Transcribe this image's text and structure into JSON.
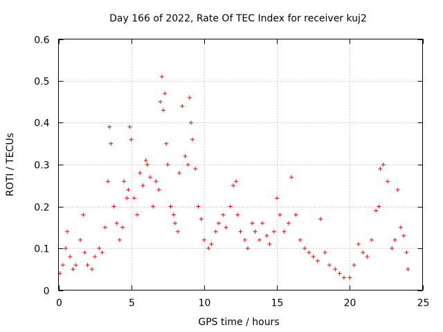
{
  "chart_data": {
    "type": "scatter",
    "title": "Day 166 of 2022, Rate Of TEC Index for receiver kuj2",
    "xlabel": "GPS time / hours",
    "ylabel": "ROTI / TECUs",
    "xlim": [
      0,
      25
    ],
    "ylim": [
      0,
      0.6
    ],
    "x_ticks": [
      0,
      5,
      10,
      15,
      20,
      25
    ],
    "x_tick_labels": [
      "0",
      "5",
      "10",
      "15",
      "20",
      "25"
    ],
    "y_ticks": [
      0,
      0.1,
      0.2,
      0.3,
      0.4,
      0.5,
      0.6
    ],
    "y_tick_labels": [
      "0",
      "0.1",
      "0.2",
      "0.3",
      "0.4",
      "0.5",
      "0.6"
    ],
    "grid": true,
    "marker": "+",
    "marker_color": "#ff0000",
    "series": [
      {
        "name": "ROTI",
        "x": [
          0.1,
          0.3,
          0.5,
          0.6,
          0.8,
          1.0,
          1.2,
          1.5,
          1.7,
          1.8,
          2.0,
          2.3,
          2.5,
          2.8,
          3.0,
          3.2,
          3.4,
          3.5,
          3.6,
          3.8,
          4.0,
          4.2,
          4.4,
          4.5,
          4.7,
          4.8,
          4.9,
          5.0,
          5.2,
          5.4,
          5.6,
          5.8,
          6.0,
          6.1,
          6.3,
          6.5,
          6.7,
          6.9,
          7.0,
          7.1,
          7.2,
          7.3,
          7.4,
          7.5,
          7.7,
          7.9,
          8.0,
          8.2,
          8.3,
          8.5,
          8.7,
          8.9,
          9.0,
          9.1,
          9.2,
          9.4,
          9.6,
          9.8,
          10.0,
          10.3,
          10.5,
          10.8,
          11.0,
          11.3,
          11.5,
          11.8,
          12.0,
          12.2,
          12.3,
          12.5,
          12.8,
          13.0,
          13.3,
          13.5,
          13.8,
          14.0,
          14.3,
          14.5,
          14.8,
          15.0,
          15.2,
          15.5,
          15.8,
          16.0,
          16.3,
          16.6,
          16.9,
          17.2,
          17.5,
          17.8,
          18.0,
          18.3,
          18.6,
          19.0,
          19.3,
          19.6,
          20.0,
          20.3,
          20.6,
          20.9,
          21.2,
          21.5,
          21.8,
          22.0,
          22.1,
          22.3,
          22.6,
          22.9,
          23.1,
          23.3,
          23.5,
          23.7,
          23.9,
          24.0
        ],
        "y": [
          0.04,
          0.06,
          0.1,
          0.14,
          0.08,
          0.05,
          0.06,
          0.12,
          0.18,
          0.09,
          0.06,
          0.05,
          0.08,
          0.1,
          0.09,
          0.15,
          0.26,
          0.39,
          0.35,
          0.2,
          0.16,
          0.12,
          0.15,
          0.26,
          0.22,
          0.24,
          0.39,
          0.36,
          0.22,
          0.18,
          0.28,
          0.25,
          0.31,
          0.3,
          0.27,
          0.2,
          0.26,
          0.24,
          0.45,
          0.51,
          0.43,
          0.47,
          0.35,
          0.3,
          0.2,
          0.18,
          0.16,
          0.14,
          0.28,
          0.44,
          0.32,
          0.3,
          0.46,
          0.4,
          0.36,
          0.29,
          0.2,
          0.17,
          0.12,
          0.1,
          0.11,
          0.14,
          0.16,
          0.18,
          0.15,
          0.2,
          0.25,
          0.26,
          0.18,
          0.14,
          0.12,
          0.1,
          0.16,
          0.14,
          0.12,
          0.16,
          0.13,
          0.11,
          0.14,
          0.22,
          0.18,
          0.14,
          0.16,
          0.27,
          0.18,
          0.12,
          0.1,
          0.09,
          0.08,
          0.07,
          0.17,
          0.09,
          0.06,
          0.05,
          0.04,
          0.03,
          0.03,
          0.06,
          0.11,
          0.09,
          0.08,
          0.12,
          0.19,
          0.2,
          0.29,
          0.3,
          0.26,
          0.1,
          0.12,
          0.24,
          0.15,
          0.13,
          0.09,
          0.05
        ]
      }
    ]
  }
}
